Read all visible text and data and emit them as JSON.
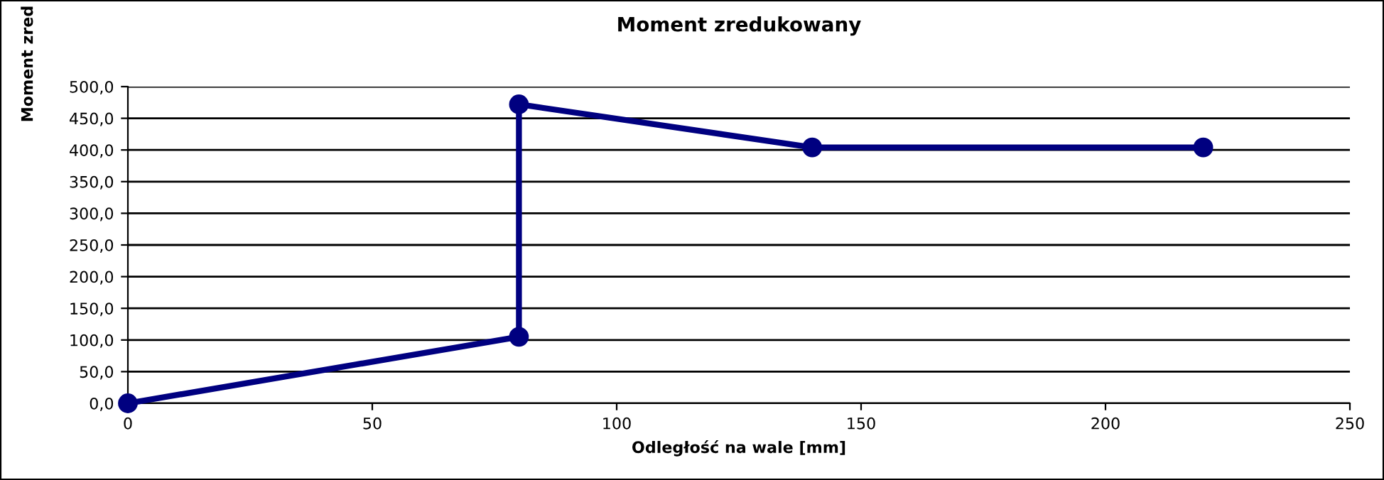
{
  "chart_data": {
    "type": "line",
    "title": "Moment zredukowany",
    "xlabel": "Odległość na wale [mm]",
    "ylabel": "Moment zred",
    "x": [
      0,
      80,
      80,
      140,
      220
    ],
    "series": [
      {
        "color": "#000080",
        "values": [
          0,
          105,
          472,
          404,
          404
        ]
      }
    ],
    "xlim": [
      0,
      250
    ],
    "xticks": [
      0,
      50,
      100,
      150,
      200,
      250
    ],
    "ylim": [
      0,
      500
    ],
    "yticks": [
      {
        "value": 0,
        "label": "0,0"
      },
      {
        "value": 50,
        "label": "50,0"
      },
      {
        "value": 100,
        "label": "100,0"
      },
      {
        "value": 150,
        "label": "150,0"
      },
      {
        "value": 200,
        "label": "200,0"
      },
      {
        "value": 250,
        "label": "250,0"
      },
      {
        "value": 300,
        "label": "300,0"
      },
      {
        "value": 350,
        "label": "350,0"
      },
      {
        "value": 400,
        "label": "400,0"
      },
      {
        "value": 450,
        "label": "450,0"
      },
      {
        "value": 500,
        "label": "500,0"
      }
    ],
    "grid": "y",
    "marker": "circle",
    "line_style": "solid",
    "legend": false
  }
}
